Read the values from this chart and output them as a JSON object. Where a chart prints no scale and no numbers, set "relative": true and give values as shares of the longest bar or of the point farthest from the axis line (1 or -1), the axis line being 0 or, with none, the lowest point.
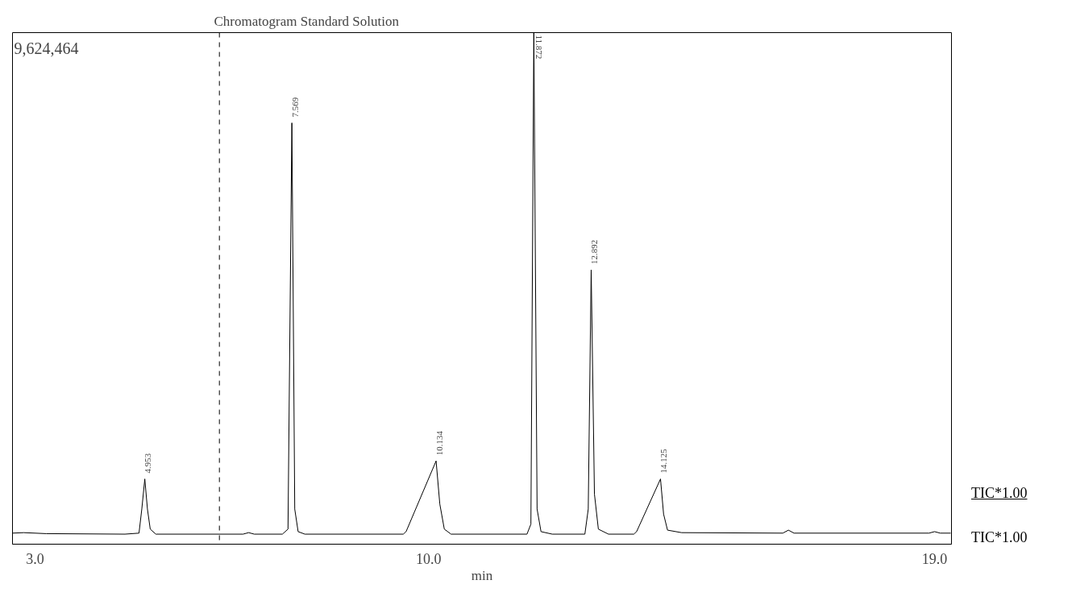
{
  "chart_data": {
    "type": "line",
    "title": "Chromatogram Standard Solution",
    "xlabel": "min",
    "relative": true,
    "color": "#000000",
    "x": [
      2.6,
      2.8,
      3.2,
      4.6,
      4.85,
      4.9,
      4.953,
      5.0,
      5.05,
      5.15,
      6.7,
      6.8,
      6.9,
      7.4,
      7.5,
      7.569,
      7.62,
      7.68,
      7.8,
      9.55,
      9.6,
      10.134,
      10.2,
      10.28,
      10.4,
      11.75,
      11.82,
      11.872,
      11.93,
      12.0,
      12.2,
      12.78,
      12.84,
      12.892,
      12.95,
      13.02,
      13.2,
      13.65,
      13.7,
      14.125,
      14.18,
      14.25,
      14.5,
      16.3,
      16.4,
      16.5,
      18.9,
      19.0,
      19.1,
      19.28
    ],
    "values": [
      0.002,
      0.003,
      0.001,
      0.0,
      0.002,
      0.05,
      0.11,
      0.05,
      0.01,
      0.0,
      0.0,
      0.003,
      0.0,
      0.0,
      0.01,
      0.82,
      0.05,
      0.005,
      0.0,
      0.0,
      0.005,
      0.146,
      0.06,
      0.01,
      0.0,
      0.0,
      0.02,
      1.0,
      0.05,
      0.005,
      0.0,
      0.0,
      0.05,
      0.527,
      0.08,
      0.01,
      0.0,
      0.0,
      0.005,
      0.11,
      0.04,
      0.008,
      0.003,
      0.002,
      0.008,
      0.002,
      0.002,
      0.005,
      0.002,
      0.002
    ],
    "xlim": [
      2.6,
      19.3
    ],
    "xticks": [
      {
        "value": 3,
        "label": "3.0"
      },
      {
        "value": 10,
        "label": "10.0"
      },
      {
        "value": 19,
        "label": "19.0"
      }
    ],
    "tick_labels": "x",
    "grid": false,
    "line_style": "solid",
    "marker": "none",
    "ref_lines": [
      {
        "axis": "x",
        "value": 6.28,
        "label": null,
        "line_style": "dashed",
        "color": "#000000"
      }
    ],
    "annotations": [
      "9,624,464",
      "TIC*1.00",
      "TIC*1.00",
      {
        "text": "4.953",
        "x": 4.953,
        "y": 0.11
      },
      {
        "text": "7.569",
        "x": 7.569,
        "y": 0.82
      },
      {
        "text": "10.134",
        "x": 10.134,
        "y": 0.146
      },
      {
        "text": "11.872",
        "x": 11.872,
        "y": 1.0
      },
      {
        "text": "12.892",
        "x": 12.892,
        "y": 0.527
      },
      {
        "text": "14.125",
        "x": 14.125,
        "y": 0.11
      }
    ]
  }
}
